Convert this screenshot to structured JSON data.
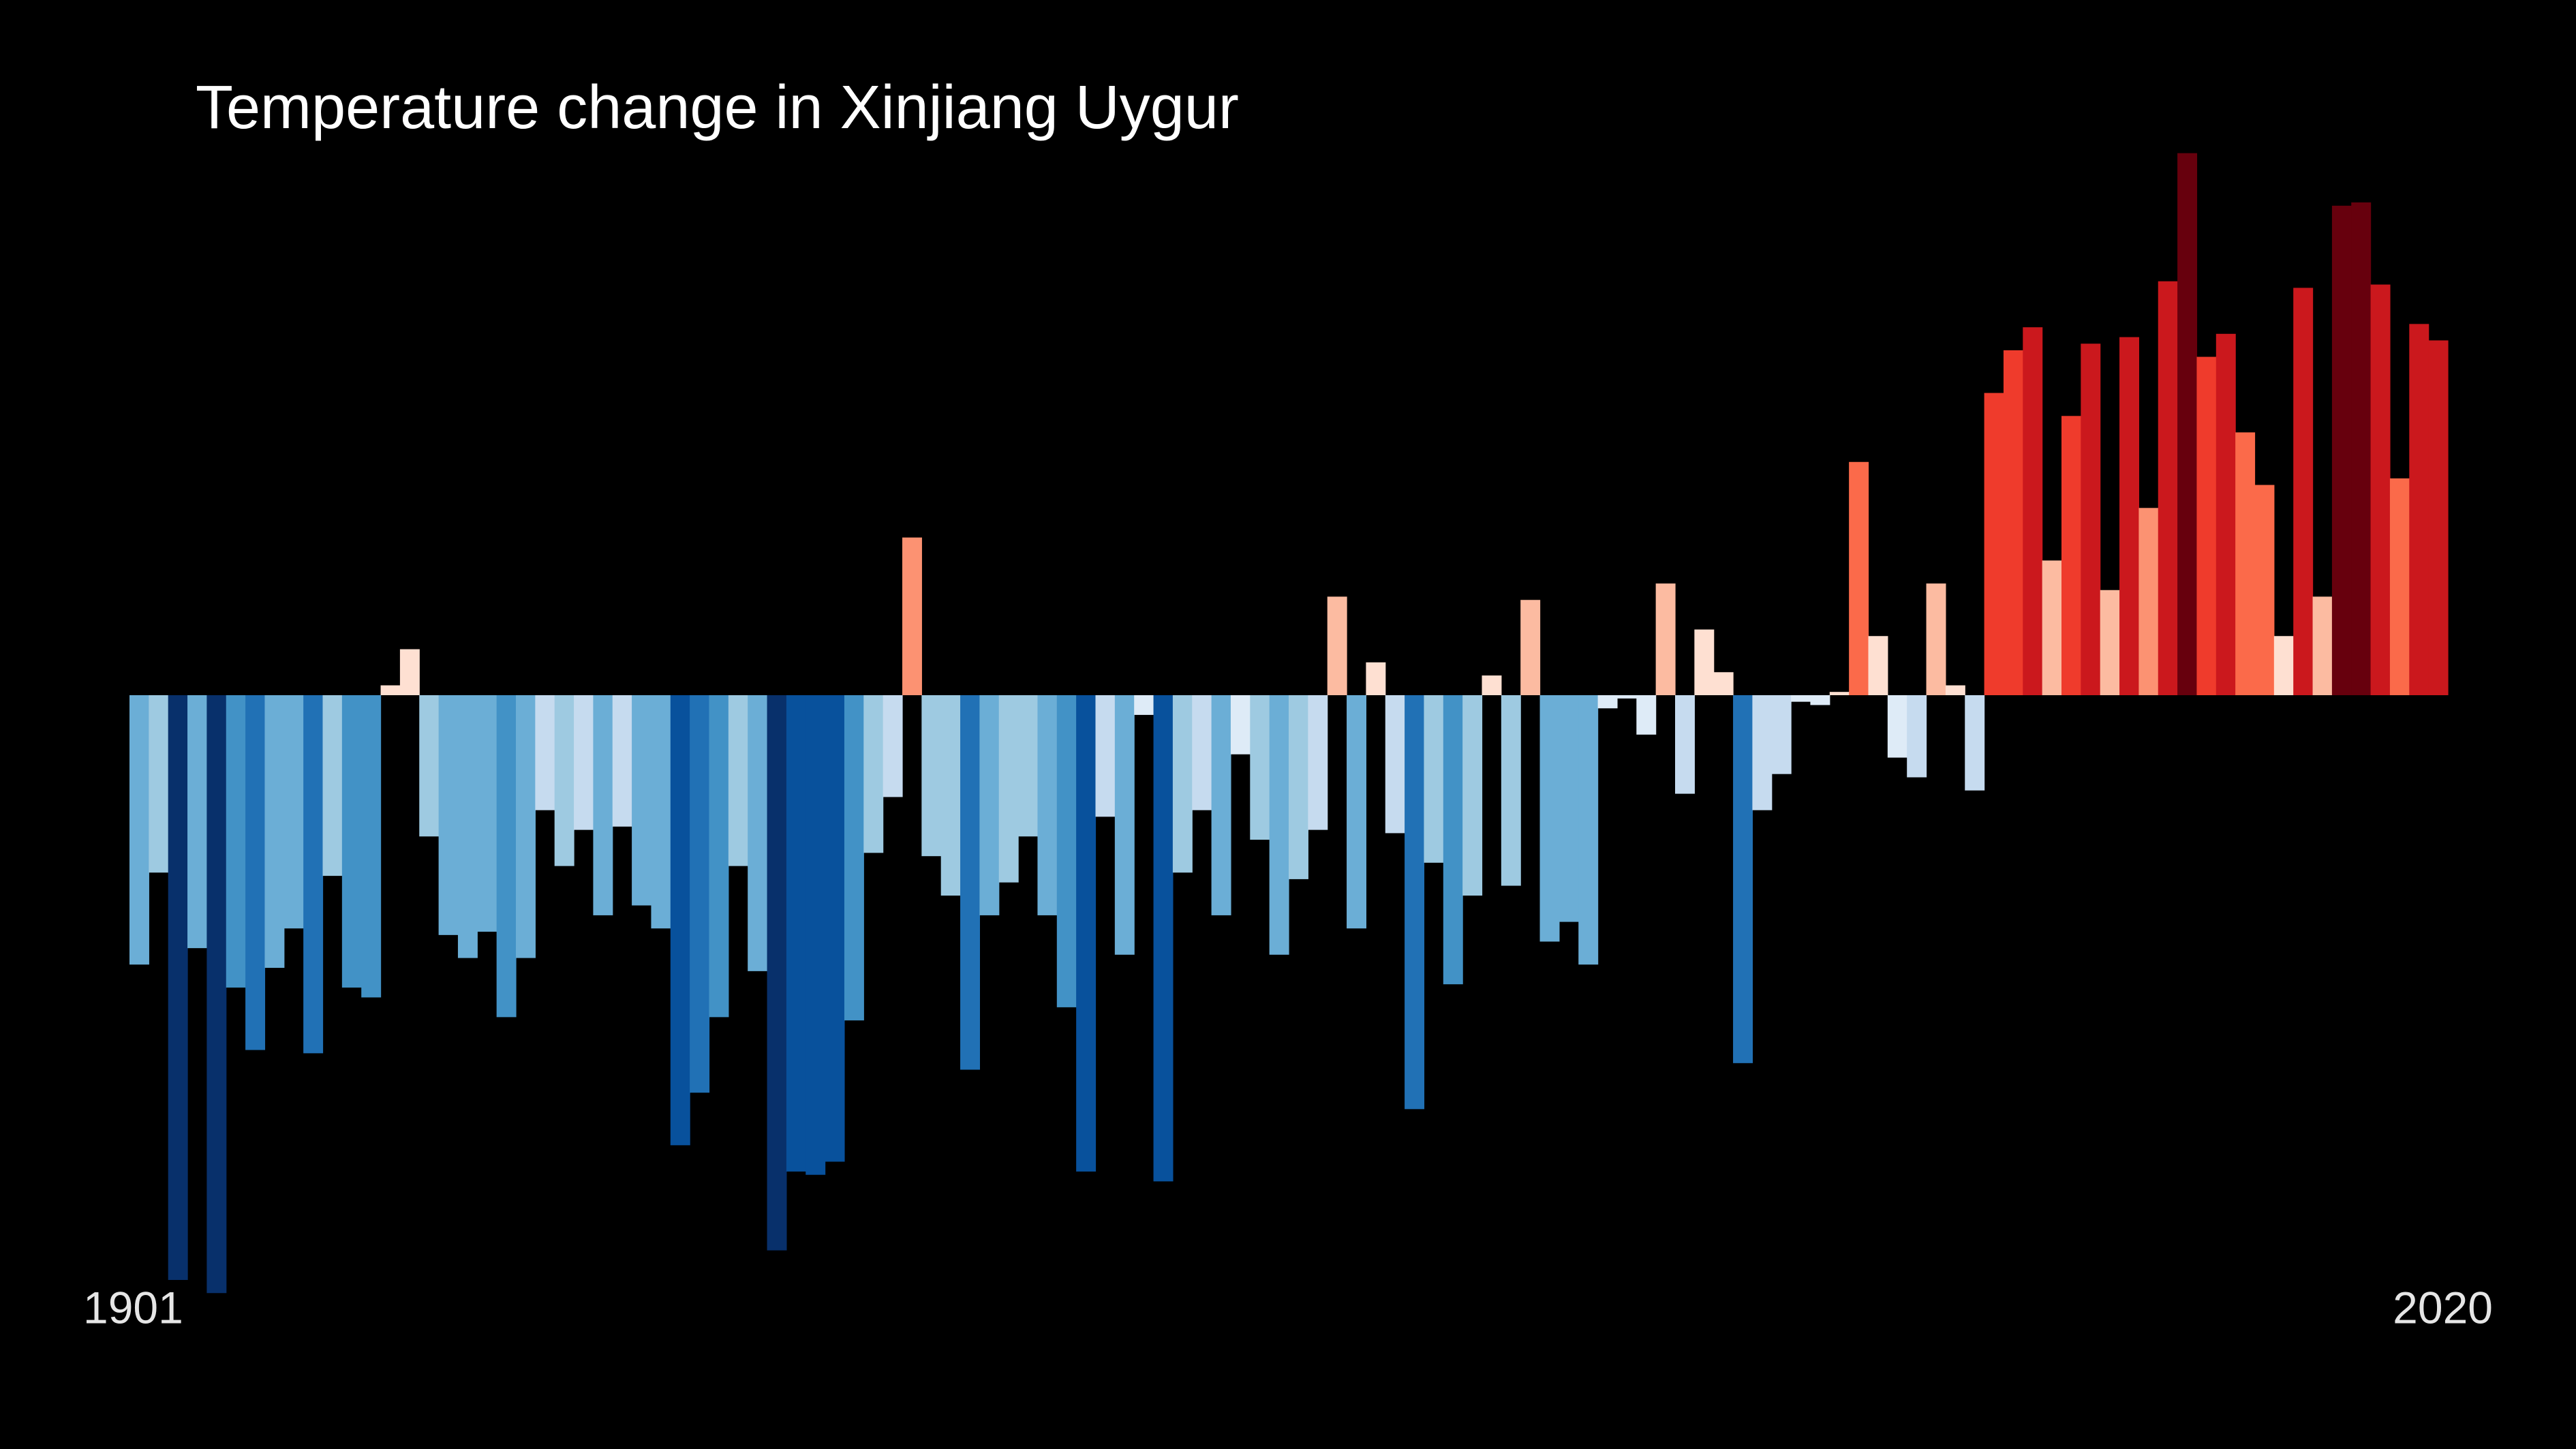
{
  "chart_data": {
    "type": "bar",
    "title": "Temperature change in Xinjiang Uygur",
    "categories": [
      "1901",
      null,
      null,
      null,
      null,
      null,
      null,
      null,
      null,
      null,
      null,
      null,
      null,
      null,
      null,
      null,
      null,
      null,
      null,
      null,
      null,
      null,
      null,
      null,
      null,
      null,
      null,
      null,
      null,
      null,
      null,
      null,
      null,
      null,
      null,
      null,
      null,
      null,
      null,
      null,
      null,
      null,
      null,
      null,
      null,
      null,
      null,
      null,
      null,
      null,
      null,
      null,
      null,
      null,
      null,
      null,
      null,
      null,
      null,
      null,
      null,
      null,
      null,
      null,
      null,
      null,
      null,
      null,
      null,
      null,
      null,
      null,
      null,
      null,
      null,
      null,
      null,
      null,
      null,
      null,
      null,
      null,
      null,
      null,
      null,
      null,
      null,
      null,
      null,
      null,
      null,
      null,
      null,
      null,
      null,
      null,
      null,
      null,
      null,
      null,
      null,
      null,
      null,
      null,
      null,
      null,
      null,
      null,
      null,
      null,
      null,
      null,
      null,
      null,
      null,
      null,
      null,
      null,
      null,
      "2020"
    ],
    "values": [
      -0.82,
      -0.54,
      -1.78,
      -0.77,
      -1.82,
      -0.89,
      -1.08,
      -0.83,
      -0.71,
      -1.09,
      -0.55,
      -0.89,
      -0.92,
      0.03,
      0.14,
      -0.43,
      -0.73,
      -0.8,
      -0.72,
      -0.98,
      -0.8,
      -0.35,
      -0.52,
      -0.41,
      -0.67,
      -0.4,
      -0.64,
      -0.71,
      -1.37,
      -1.21,
      -0.98,
      -0.52,
      -0.84,
      -1.69,
      -1.45,
      -1.46,
      -1.42,
      -0.99,
      -0.48,
      -0.31,
      0.48,
      -0.49,
      -0.61,
      -1.14,
      -0.67,
      -0.57,
      -0.43,
      -0.67,
      -0.95,
      -1.45,
      -0.37,
      -0.79,
      -0.06,
      -1.48,
      -0.54,
      -0.35,
      -0.67,
      -0.18,
      -0.44,
      -0.79,
      -0.56,
      -0.41,
      0.3,
      -0.71,
      0.1,
      -0.42,
      -1.26,
      -0.51,
      -0.88,
      -0.61,
      0.06,
      -0.58,
      0.29,
      -0.75,
      -0.69,
      -0.82,
      -0.04,
      -0.01,
      -0.12,
      0.34,
      -0.3,
      0.2,
      0.07,
      -1.12,
      -0.35,
      -0.24,
      -0.02,
      -0.03,
      0.01,
      0.71,
      0.18,
      -0.19,
      -0.25,
      0.34,
      0.03,
      -0.29,
      0.92,
      1.05,
      1.12,
      0.41,
      0.85,
      1.07,
      0.32,
      1.09,
      0.57,
      1.26,
      1.65,
      1.03,
      1.1,
      0.8,
      0.64,
      0.18,
      1.24,
      0.3,
      1.49,
      1.5,
      1.25,
      0.66,
      1.13,
      1.08
    ],
    "ylim": [
      -2.0,
      2.0
    ],
    "colorscale": [
      "#08306b",
      "#08519c",
      "#2171b5",
      "#4292c6",
      "#6baed6",
      "#9ecae1",
      "#c6dbef",
      "#deebf7",
      "#fee0d2",
      "#fcbba1",
      "#fc9272",
      "#fb6a4a",
      "#ef3b2c",
      "#cb181d",
      "#a50f15",
      "#67000d"
    ],
    "color_limits": [
      -1.7,
      1.7
    ],
    "background": "#000000"
  }
}
